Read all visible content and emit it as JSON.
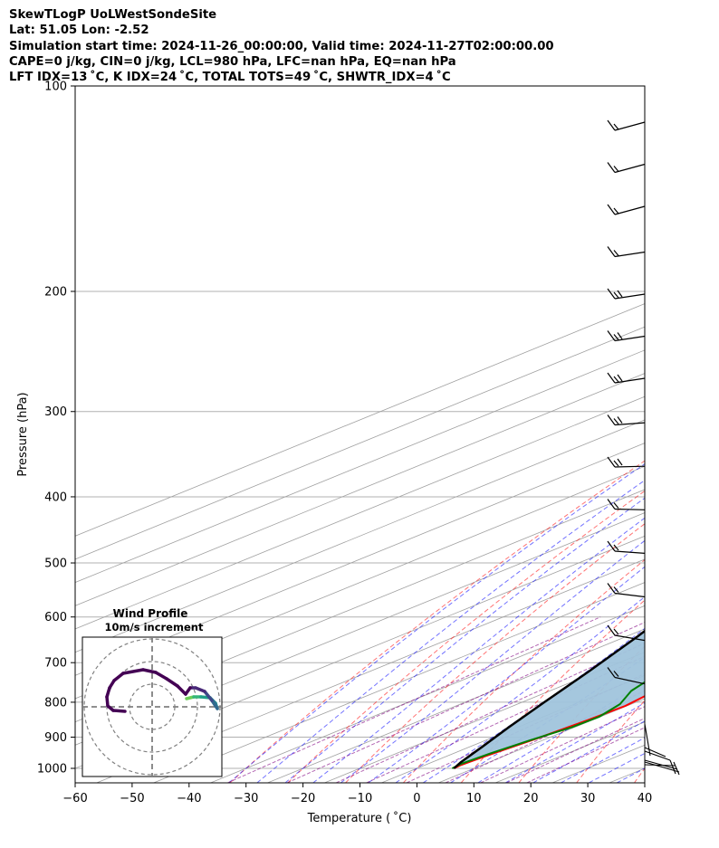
{
  "header": {
    "title": "SkewTLogP UoLWestSondeSite",
    "location": "Lat: 51.05   Lon: -2.52",
    "times": "Simulation start time: 2024-11-26_00:00:00, Valid time: 2024-11-27T02:00:00.00",
    "indices1": "CAPE=0 j/kg, CIN=0 j/kg, LCL=980 hPa, LFC=nan hPa, EQ=nan hPa",
    "indices2": "LFT IDX=13 ˚C, K IDX=24 ˚C, TOTAL TOTS=49 ˚C, SHWTR_IDX=4 ˚C"
  },
  "chart_data": {
    "type": "line",
    "subtype": "skew-T log-P sounding",
    "xlabel": "Temperature ( ˚C)",
    "ylabel": "Pressure (hPa)",
    "xlim": [
      -60,
      40
    ],
    "ylim": [
      1050,
      100
    ],
    "y_scale": "log",
    "xticks": [
      -60,
      -50,
      -40,
      -30,
      -20,
      -10,
      0,
      10,
      20,
      30,
      40
    ],
    "yticks": [
      100,
      200,
      300,
      400,
      500,
      600,
      700,
      800,
      900,
      1000
    ],
    "grid": true,
    "colors": {
      "temperature": "#ff0000",
      "dewpoint": "#008000",
      "parcel": "#000000",
      "shade": "#a0c4dc",
      "dry_adiabat": "#ff0000",
      "moist_adiabat": "#0000ff",
      "isotherm": "#808080",
      "mixing_ratio": "#800080"
    },
    "series": [
      {
        "key": "temperature",
        "points": [
          [
            6.5,
            1000
          ],
          [
            6.3,
            990
          ],
          [
            6.8,
            960
          ],
          [
            8.3,
            900
          ],
          [
            9.2,
            850
          ],
          [
            9.7,
            810
          ],
          [
            8.5,
            770
          ],
          [
            7.2,
            720
          ],
          [
            4.5,
            650
          ],
          [
            2.5,
            600
          ],
          [
            0.3,
            550
          ],
          [
            -1.2,
            500
          ],
          [
            -2.8,
            450
          ],
          [
            -4.5,
            400
          ],
          [
            -6.5,
            360
          ],
          [
            -9.5,
            320
          ],
          [
            -13,
            290
          ],
          [
            -13.5,
            260
          ],
          [
            -14.8,
            235
          ],
          [
            -15.5,
            215
          ],
          [
            -14,
            195
          ],
          [
            -12.3,
            185
          ],
          [
            -13,
            160
          ],
          [
            -13.5,
            140
          ],
          [
            -13.5,
            120
          ],
          [
            -13.5,
            100
          ]
        ]
      },
      {
        "key": "dewpoint",
        "points": [
          [
            6.2,
            1000
          ],
          [
            5.8,
            985
          ],
          [
            6.5,
            950
          ],
          [
            7.8,
            910
          ],
          [
            9.5,
            870
          ],
          [
            9.8,
            840
          ],
          [
            8,
            805
          ],
          [
            4.3,
            770
          ],
          [
            1.5,
            725
          ],
          [
            1.2,
            670
          ],
          [
            0.3,
            600
          ],
          [
            -2,
            540
          ],
          [
            -4,
            500
          ],
          [
            -5.5,
            440
          ],
          [
            -7.8,
            390
          ],
          [
            -11,
            340
          ],
          [
            -14.5,
            300
          ],
          [
            -18.5,
            280
          ],
          [
            -20.8,
            265
          ],
          [
            -23,
            235
          ],
          [
            -26,
            200
          ],
          [
            -28.2,
            180
          ],
          [
            -31,
            165
          ],
          [
            -36,
            145
          ],
          [
            -35.5,
            130
          ],
          [
            -33.8,
            120
          ],
          [
            -33.5,
            100
          ]
        ]
      },
      {
        "key": "parcel",
        "points": [
          [
            6.5,
            1000
          ],
          [
            5.1,
            980
          ],
          [
            2.2,
            930
          ],
          [
            -1.6,
            870
          ],
          [
            -6.1,
            800
          ],
          [
            -11.6,
            720
          ],
          [
            -18.1,
            640
          ],
          [
            -26.1,
            560
          ],
          [
            -35.9,
            480
          ],
          [
            -48.2,
            400
          ],
          [
            -65.2,
            320
          ],
          [
            -82.8,
            260
          ],
          [
            -101.6,
            210
          ],
          [
            -120.6,
            170
          ],
          [
            -140.2,
            137
          ],
          [
            -160.7,
            110
          ],
          [
            -169.9,
            100
          ]
        ]
      }
    ],
    "wind_profile": {
      "title": "Wind Profile",
      "subtitle": "10m/s increment"
    }
  }
}
